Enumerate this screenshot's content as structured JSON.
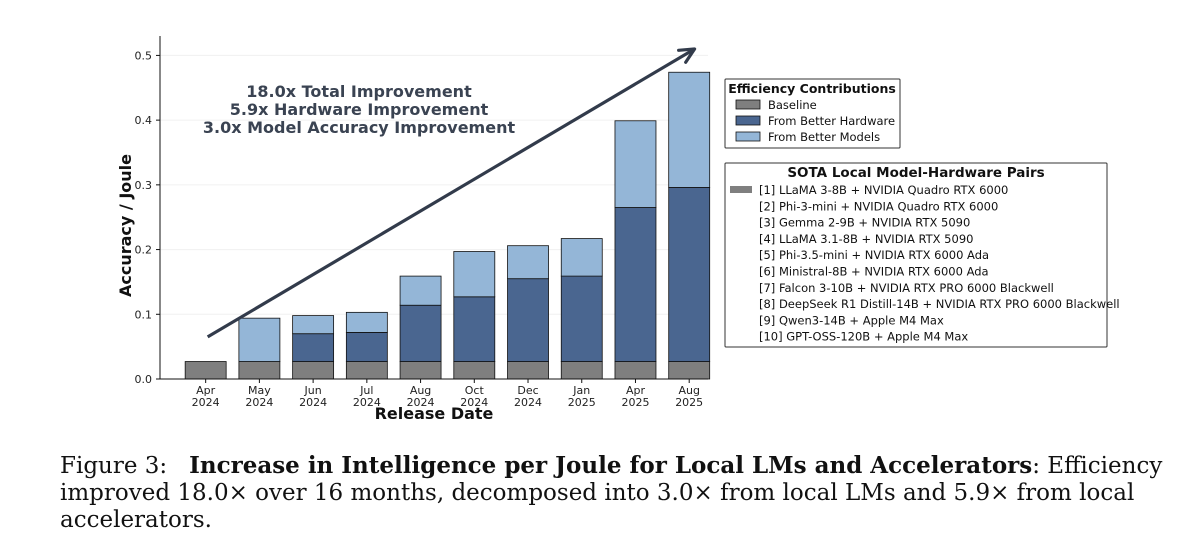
{
  "chart_data": {
    "type": "bar",
    "stacked": true,
    "categories": [
      "Apr\n2024",
      "May\n2024",
      "Jun\n2024",
      "Jul\n2024",
      "Aug\n2024",
      "Oct\n2024",
      "Dec\n2024",
      "Jan\n2025",
      "Apr\n2025",
      "Aug\n2025"
    ],
    "series": [
      {
        "name": "Baseline",
        "color": "#7f7f7f",
        "values": [
          0.027,
          0.027,
          0.027,
          0.027,
          0.027,
          0.027,
          0.027,
          0.027,
          0.027,
          0.027
        ]
      },
      {
        "name": "From Better Hardware",
        "color": "#4a6690",
        "values": [
          0,
          0,
          0.043,
          0.045,
          0.087,
          0.1,
          0.128,
          0.132,
          0.238,
          0.269
        ]
      },
      {
        "name": "From Better Models",
        "color": "#94b6d7",
        "values": [
          0,
          0.067,
          0.028,
          0.031,
          0.045,
          0.07,
          0.051,
          0.058,
          0.134,
          0.178
        ]
      }
    ],
    "xlabel": "Release Date",
    "ylabel": "Accuracy / Joule",
    "ylim": [
      0,
      0.53
    ],
    "yticks": [
      0.0,
      0.1,
      0.2,
      0.3,
      0.4,
      0.5
    ],
    "ytick_labels": [
      "0.0",
      "0.1",
      "0.2",
      "0.3",
      "0.4",
      "0.5"
    ],
    "grid": "horizontal, faint",
    "legend_title": "Efficiency Contributions",
    "legend_placement": "right",
    "annotations": [
      "18.0x Total Improvement",
      "5.9x Hardware Improvement",
      "3.0x Model Accuracy Improvement"
    ],
    "trend_arrow": {
      "from": [
        0,
        0.065
      ],
      "to": [
        9.1,
        0.51
      ]
    },
    "pairs_legend_title": "SOTA Local Model-Hardware Pairs",
    "pairs": [
      "[1] LLaMA 3-8B + NVIDIA Quadro RTX 6000",
      "[2] Phi-3-mini + NVIDIA Quadro RTX 6000",
      "[3] Gemma 2-9B + NVIDIA RTX 5090",
      "[4] LLaMA 3.1-8B + NVIDIA RTX 5090",
      "[5] Phi-3.5-mini + NVIDIA RTX 6000 Ada",
      "[6] Ministral-8B + NVIDIA RTX 6000 Ada",
      "[7] Falcon 3-10B + NVIDIA RTX PRO 6000 Blackwell",
      "[8] DeepSeek R1 Distill-14B + NVIDIA RTX PRO 6000 Blackwell",
      "[9] Qwen3-14B + Apple M4 Max",
      "[10] GPT-OSS-120B + Apple M4 Max"
    ]
  },
  "caption": {
    "label": "Figure 3:",
    "title": "Increase in Intelligence per Joule for Local LMs and Accelerators",
    "text": ": Efficiency improved 18.0× over 16 months, decomposed into 3.0× from local LMs and 5.9× from local accelerators."
  }
}
